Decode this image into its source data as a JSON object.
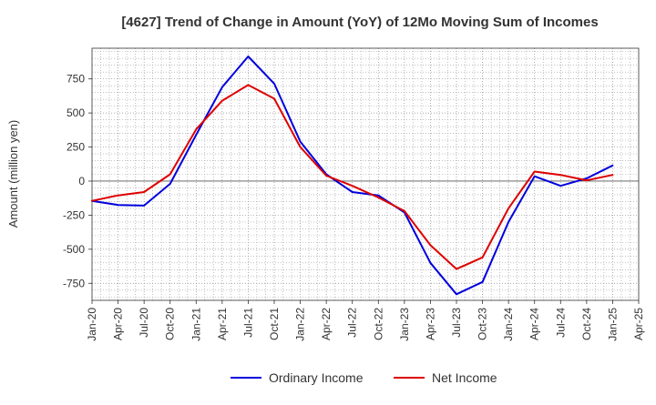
{
  "chart_data": {
    "type": "line",
    "title": "[4627]  Trend of Change in Amount (YoY) of 12Mo Moving Sum of Incomes",
    "ylabel": "Amount (million yen)",
    "xlabel": "",
    "ylim": [
      -875,
      975
    ],
    "yticks": [
      -750,
      -500,
      -250,
      0,
      250,
      500,
      750
    ],
    "ytick_labels": [
      "-750",
      "-500",
      "-250",
      "0",
      "250",
      "500",
      "750"
    ],
    "x_tick_labels": [
      "Jan-20",
      "Apr-20",
      "Jul-20",
      "Oct-20",
      "Jan-21",
      "Apr-21",
      "Jul-21",
      "Oct-21",
      "Jan-22",
      "Apr-22",
      "Jul-22",
      "Oct-22",
      "Jan-23",
      "Apr-23",
      "Jul-23",
      "Oct-23",
      "Jan-24",
      "Apr-24",
      "Jul-24",
      "Oct-24",
      "Jan-25",
      "Apr-25"
    ],
    "legend_position": "bottom",
    "grid": true,
    "series": [
      {
        "name": "Ordinary Income",
        "color": "#0000dd",
        "values": [
          -145,
          -175,
          -180,
          -20,
          340,
          690,
          915,
          715,
          290,
          50,
          -80,
          -105,
          -230,
          -600,
          -830,
          -740,
          -300,
          35,
          -35,
          20,
          115
        ]
      },
      {
        "name": "Net Income",
        "color": "#dd0000",
        "values": [
          -145,
          -105,
          -80,
          50,
          380,
          590,
          705,
          605,
          250,
          40,
          -35,
          -120,
          -220,
          -470,
          -645,
          -560,
          -200,
          70,
          45,
          5,
          45
        ]
      }
    ]
  }
}
